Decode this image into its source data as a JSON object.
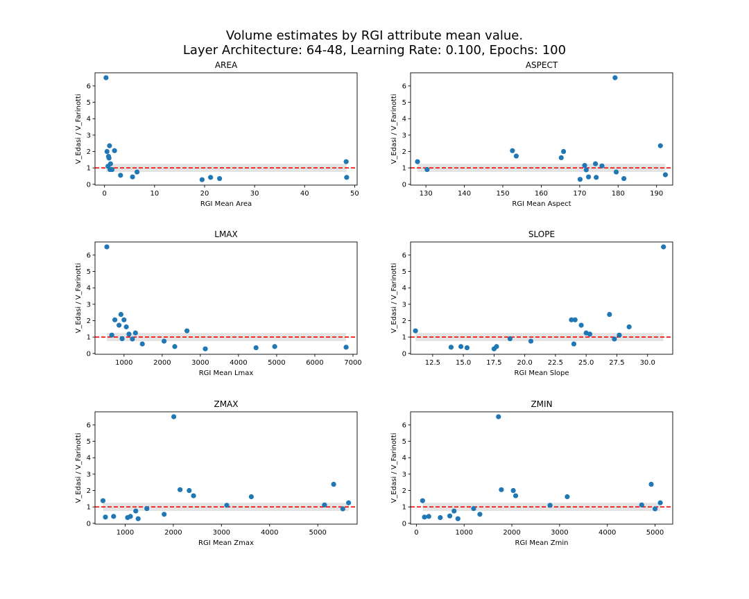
{
  "figure": {
    "title_line1": "Volume estimates by RGI attribute mean value.",
    "title_line2": "Layer Architecture: 64-48, Learning Rate: 0.100, Epochs: 100"
  },
  "colors": {
    "points": "#1f77b4",
    "ref_line": "#ff0000",
    "band": "#d9d9d9"
  },
  "chart_data": [
    {
      "type": "scatter",
      "title": "AREA",
      "xlabel": "RGI Mean Area",
      "ylabel": "V_Edasi / V_Farinotti",
      "xlim": [
        -1.9,
        50.5
      ],
      "ylim": [
        -0.05,
        6.8
      ],
      "xticks": [
        0,
        10,
        20,
        30,
        40,
        50
      ],
      "yticks": [
        0,
        1,
        2,
        3,
        4,
        5,
        6
      ],
      "reference_line_y": 1,
      "band": [
        0.75,
        1.25
      ],
      "x": [
        0.3,
        0.5,
        0.7,
        0.8,
        0.9,
        1.0,
        1.1,
        1.2,
        1.5,
        2.0,
        3.2,
        5.6,
        6.5,
        19.5,
        21.2,
        23.0,
        48.3,
        48.4
      ],
      "y": [
        6.5,
        2.0,
        1.1,
        1.7,
        1.6,
        2.35,
        0.9,
        1.25,
        0.9,
        2.05,
        0.55,
        0.45,
        0.75,
        0.28,
        0.42,
        0.35,
        1.38,
        0.42
      ]
    },
    {
      "type": "scatter",
      "title": "ASPECT",
      "xlabel": "RGI Mean Aspect",
      "ylabel": "V_Edasi / V_Farinotti",
      "xlim": [
        126,
        194.2
      ],
      "ylim": [
        -0.05,
        6.8
      ],
      "xticks": [
        130,
        140,
        150,
        160,
        170,
        180,
        190
      ],
      "yticks": [
        0,
        1,
        2,
        3,
        4,
        5,
        6
      ],
      "reference_line_y": 1,
      "band": [
        0.75,
        1.25
      ],
      "x": [
        127.8,
        130.3,
        152.5,
        153.5,
        165.2,
        165.8,
        170.1,
        171.3,
        171.7,
        172.3,
        174.1,
        174.3,
        175.8,
        179.2,
        179.5,
        181.5,
        191.0,
        192.3
      ],
      "y": [
        1.38,
        0.9,
        2.05,
        1.72,
        1.62,
        2.0,
        0.3,
        1.15,
        0.88,
        0.45,
        1.25,
        0.42,
        1.12,
        6.5,
        0.75,
        0.35,
        2.35,
        0.58
      ]
    },
    {
      "type": "scatter",
      "title": "LMAX",
      "xlabel": "RGI Mean Lmax",
      "ylabel": "V_Edasi / V_Farinotti",
      "xlim": [
        240,
        7110
      ],
      "ylim": [
        -0.05,
        6.8
      ],
      "xticks": [
        1000,
        2000,
        3000,
        4000,
        5000,
        6000,
        7000
      ],
      "yticks": [
        0,
        1,
        2,
        3,
        4,
        5,
        6
      ],
      "reference_line_y": 1,
      "band": [
        0.75,
        1.25
      ],
      "x": [
        550,
        680,
        760,
        870,
        920,
        950,
        1000,
        1060,
        1130,
        1220,
        1300,
        1480,
        2050,
        2330,
        2650,
        3130,
        4460,
        4950,
        6820
      ],
      "y": [
        6.5,
        1.12,
        2.05,
        1.72,
        2.38,
        0.9,
        2.05,
        1.62,
        1.18,
        0.88,
        1.25,
        0.58,
        0.75,
        0.42,
        1.38,
        0.28,
        0.35,
        0.42,
        0.38
      ]
    },
    {
      "type": "scatter",
      "title": "SLOPE",
      "xlabel": "RGI Mean Slope",
      "ylabel": "V_Edasi / V_Farinotti",
      "xlim": [
        10.7,
        32.05
      ],
      "ylim": [
        -0.05,
        6.8
      ],
      "xticks": [
        12.5,
        15.0,
        17.5,
        20.0,
        22.5,
        25.0,
        27.5,
        30.0
      ],
      "yticks": [
        0,
        1,
        2,
        3,
        4,
        5,
        6
      ],
      "reference_line_y": 1,
      "band": [
        0.75,
        1.25
      ],
      "x": [
        11.1,
        14.0,
        14.8,
        15.3,
        17.5,
        17.7,
        18.8,
        20.5,
        23.8,
        24.0,
        24.1,
        24.6,
        25.0,
        25.3,
        26.9,
        27.3,
        27.7,
        28.5,
        31.3
      ],
      "y": [
        1.38,
        0.38,
        0.42,
        0.35,
        0.28,
        0.42,
        0.9,
        0.75,
        2.05,
        0.58,
        2.05,
        1.72,
        1.25,
        1.18,
        2.38,
        0.88,
        1.12,
        1.62,
        6.5
      ]
    },
    {
      "type": "scatter",
      "title": "ZMAX",
      "xlabel": "RGI Mean Zmax",
      "ylabel": "V_Edasi / V_Farinotti",
      "xlim": [
        374,
        5818
      ],
      "ylim": [
        -0.05,
        6.8
      ],
      "xticks": [
        1000,
        2000,
        3000,
        4000,
        5000
      ],
      "yticks": [
        0,
        1,
        2,
        3,
        4,
        5,
        6
      ],
      "reference_line_y": 1,
      "band": [
        0.75,
        1.25
      ],
      "x": [
        540,
        590,
        760,
        1050,
        1110,
        1220,
        1270,
        1450,
        1810,
        2010,
        2140,
        2330,
        2420,
        3110,
        3620,
        5140,
        5330,
        5520,
        5640
      ],
      "y": [
        1.38,
        0.38,
        0.42,
        0.35,
        0.42,
        0.75,
        0.28,
        0.9,
        0.55,
        6.5,
        2.05,
        2.0,
        1.68,
        1.1,
        1.62,
        1.12,
        2.38,
        0.88,
        1.25
      ]
    },
    {
      "type": "scatter",
      "title": "ZMIN",
      "xlabel": "RGI Mean Zmin",
      "ylabel": "V_Edasi / V_Farinotti",
      "xlim": [
        -122,
        5370
      ],
      "ylim": [
        -0.05,
        6.8
      ],
      "xticks": [
        0,
        1000,
        2000,
        3000,
        4000,
        5000
      ],
      "yticks": [
        0,
        1,
        2,
        3,
        4,
        5,
        6
      ],
      "reference_line_y": 1,
      "band": [
        0.75,
        1.25
      ],
      "x": [
        130,
        170,
        260,
        500,
        700,
        790,
        870,
        1200,
        1330,
        1720,
        1780,
        2030,
        2080,
        2800,
        3160,
        4720,
        4920,
        5000,
        5110
      ],
      "y": [
        1.38,
        0.38,
        0.42,
        0.35,
        0.45,
        0.75,
        0.28,
        0.9,
        0.55,
        6.5,
        2.05,
        2.0,
        1.68,
        1.1,
        1.62,
        1.12,
        2.38,
        0.88,
        1.25
      ]
    }
  ]
}
